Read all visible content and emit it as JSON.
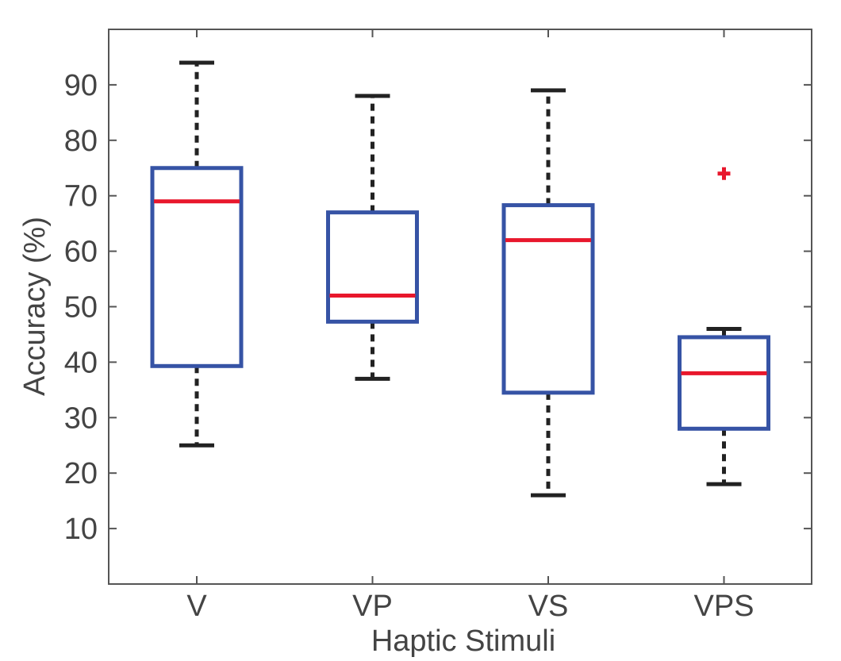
{
  "chart_data": {
    "type": "boxplot",
    "title": "",
    "xlabel": "Haptic Stimuli",
    "ylabel": "Accuracy (%)",
    "ylim": [
      0,
      100
    ],
    "yticks": [
      10,
      20,
      30,
      40,
      50,
      60,
      70,
      80,
      90
    ],
    "categories": [
      "V",
      "VP",
      "VS",
      "VPS"
    ],
    "boxes": [
      {
        "category": "V",
        "whisker_low": 25,
        "q1": 39.3,
        "median": 69,
        "q3": 75,
        "whisker_high": 94,
        "outliers": []
      },
      {
        "category": "VP",
        "whisker_low": 37,
        "q1": 47.3,
        "median": 52,
        "q3": 67,
        "whisker_high": 88,
        "outliers": []
      },
      {
        "category": "VS",
        "whisker_low": 16,
        "q1": 34.5,
        "median": 62,
        "q3": 68.3,
        "whisker_high": 89,
        "outliers": []
      },
      {
        "category": "VPS",
        "whisker_low": 18,
        "q1": 28,
        "median": 38,
        "q3": 44.5,
        "whisker_high": 46,
        "outliers": [
          74
        ]
      }
    ],
    "colors": {
      "box": "#3653A5",
      "median": "#E8172C",
      "whisker": "#222222",
      "outlier": "#E8172C",
      "axis": "#555555",
      "text": "#444444"
    },
    "grid": false,
    "legend": "none"
  }
}
